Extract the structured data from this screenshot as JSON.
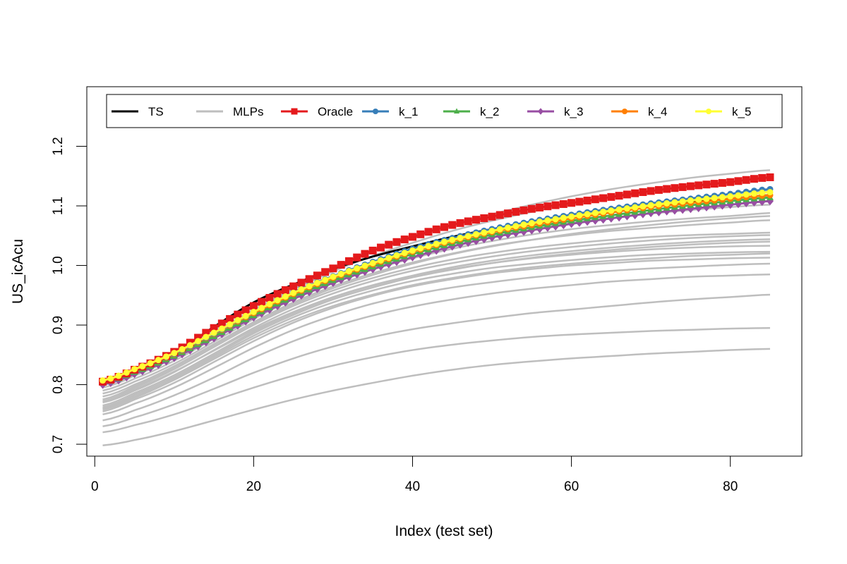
{
  "chart_data": {
    "type": "line",
    "title": "",
    "xlabel": "Index (test set)",
    "ylabel": "US_icAcu",
    "xlim": [
      -1,
      89
    ],
    "ylim": [
      0.68,
      1.3
    ],
    "xticks": [
      0,
      20,
      40,
      60,
      80
    ],
    "xtick_labels": [
      "0",
      "20",
      "40",
      "60",
      "80"
    ],
    "yticks": [
      0.7,
      0.8,
      0.9,
      1.0,
      1.1,
      1.2
    ],
    "ytick_labels": [
      "0.7",
      "0.8",
      "0.9",
      "1.0",
      "1.1",
      "1.2"
    ],
    "grid": false,
    "legend_position": "top",
    "legend": [
      {
        "label": "TS",
        "color": "#000000",
        "marker": "none"
      },
      {
        "label": "MLPs",
        "color": "#bebebe",
        "marker": "none"
      },
      {
        "label": "Oracle",
        "color": "#e41a1c",
        "marker": "square"
      },
      {
        "label": "k_1",
        "color": "#377eb8",
        "marker": "circle"
      },
      {
        "label": "k_2",
        "color": "#4daf4a",
        "marker": "triangle"
      },
      {
        "label": "k_3",
        "color": "#984ea3",
        "marker": "diamond"
      },
      {
        "label": "k_4",
        "color": "#ff7f00",
        "marker": "circle"
      },
      {
        "label": "k_5",
        "color": "#ffff33",
        "marker": "circle"
      }
    ],
    "n_points": 85,
    "x": [
      1,
      5,
      10,
      15,
      20,
      25,
      30,
      35,
      40,
      45,
      50,
      55,
      60,
      65,
      70,
      75,
      80,
      85
    ],
    "series": [
      {
        "name": "TS",
        "color": "#000000",
        "marker": "none",
        "values": [
          0.805,
          0.825,
          0.853,
          0.897,
          0.938,
          0.968,
          0.994,
          1.015,
          1.032,
          1.048,
          1.061,
          1.072,
          1.082,
          1.091,
          1.099,
          1.106,
          1.112,
          1.118
        ]
      },
      {
        "name": "Oracle",
        "color": "#e41a1c",
        "marker": "square",
        "values": [
          0.805,
          0.825,
          0.855,
          0.895,
          0.932,
          0.965,
          0.995,
          1.025,
          1.048,
          1.068,
          1.082,
          1.095,
          1.105,
          1.115,
          1.125,
          1.133,
          1.14,
          1.148
        ]
      },
      {
        "name": "k_1",
        "color": "#377eb8",
        "marker": "circle",
        "values": [
          0.805,
          0.824,
          0.852,
          0.886,
          0.922,
          0.955,
          0.982,
          1.006,
          1.028,
          1.046,
          1.061,
          1.074,
          1.085,
          1.095,
          1.104,
          1.112,
          1.12,
          1.128
        ]
      },
      {
        "name": "k_2",
        "color": "#4daf4a",
        "marker": "triangle",
        "values": [
          0.803,
          0.821,
          0.848,
          0.881,
          0.916,
          0.948,
          0.975,
          0.998,
          1.019,
          1.037,
          1.052,
          1.064,
          1.075,
          1.084,
          1.093,
          1.101,
          1.108,
          1.114
        ]
      },
      {
        "name": "k_3",
        "color": "#984ea3",
        "marker": "diamond",
        "values": [
          0.8,
          0.818,
          0.845,
          0.878,
          0.913,
          0.944,
          0.971,
          0.994,
          1.014,
          1.032,
          1.047,
          1.059,
          1.07,
          1.079,
          1.088,
          1.095,
          1.102,
          1.108
        ]
      },
      {
        "name": "k_4",
        "color": "#ff7f00",
        "marker": "circle",
        "values": [
          0.805,
          0.824,
          0.851,
          0.885,
          0.92,
          0.952,
          0.979,
          1.002,
          1.023,
          1.041,
          1.056,
          1.068,
          1.079,
          1.089,
          1.098,
          1.105,
          1.112,
          1.118
        ]
      },
      {
        "name": "k_5",
        "color": "#ffff33",
        "marker": "circle",
        "values": [
          0.807,
          0.826,
          0.853,
          0.887,
          0.922,
          0.954,
          0.981,
          1.004,
          1.025,
          1.043,
          1.058,
          1.071,
          1.082,
          1.092,
          1.101,
          1.109,
          1.116,
          1.123
        ]
      }
    ],
    "mlp_series": [
      {
        "values": [
          0.698,
          0.707,
          0.722,
          0.74,
          0.758,
          0.775,
          0.79,
          0.803,
          0.815,
          0.825,
          0.833,
          0.839,
          0.844,
          0.848,
          0.852,
          0.855,
          0.858,
          0.86
        ]
      },
      {
        "values": [
          0.72,
          0.732,
          0.75,
          0.773,
          0.795,
          0.815,
          0.832,
          0.846,
          0.858,
          0.867,
          0.874,
          0.88,
          0.884,
          0.887,
          0.89,
          0.892,
          0.894,
          0.895
        ]
      },
      {
        "values": [
          0.73,
          0.745,
          0.767,
          0.793,
          0.82,
          0.844,
          0.864,
          0.88,
          0.893,
          0.903,
          0.912,
          0.92,
          0.926,
          0.932,
          0.938,
          0.943,
          0.947,
          0.951
        ]
      },
      {
        "values": [
          0.74,
          0.757,
          0.782,
          0.812,
          0.845,
          0.873,
          0.897,
          0.916,
          0.931,
          0.943,
          0.953,
          0.961,
          0.967,
          0.973,
          0.977,
          0.981,
          0.983,
          0.985
        ]
      },
      {
        "values": [
          0.75,
          0.768,
          0.795,
          0.828,
          0.862,
          0.892,
          0.916,
          0.936,
          0.951,
          0.963,
          0.972,
          0.98,
          0.986,
          0.991,
          0.995,
          0.998,
          1.001,
          1.003
        ]
      },
      {
        "values": [
          0.755,
          0.775,
          0.803,
          0.838,
          0.873,
          0.904,
          0.929,
          0.949,
          0.965,
          0.977,
          0.987,
          0.994,
          1.0,
          1.004,
          1.008,
          1.01,
          1.012,
          1.013
        ]
      },
      {
        "values": [
          0.76,
          0.78,
          0.81,
          0.846,
          0.882,
          0.913,
          0.938,
          0.958,
          0.974,
          0.986,
          0.996,
          1.003,
          1.009,
          1.014,
          1.018,
          1.02,
          1.022,
          1.023
        ]
      },
      {
        "values": [
          0.765,
          0.786,
          0.816,
          0.852,
          0.889,
          0.92,
          0.946,
          0.966,
          0.982,
          0.994,
          1.004,
          1.012,
          1.018,
          1.023,
          1.027,
          1.03,
          1.032,
          1.033
        ]
      },
      {
        "values": [
          0.77,
          0.79,
          0.821,
          0.858,
          0.895,
          0.927,
          0.953,
          0.974,
          0.991,
          1.004,
          1.015,
          1.024,
          1.031,
          1.037,
          1.042,
          1.046,
          1.049,
          1.051
        ]
      },
      {
        "values": [
          0.775,
          0.795,
          0.826,
          0.863,
          0.9,
          0.932,
          0.958,
          0.979,
          0.996,
          1.01,
          1.021,
          1.03,
          1.037,
          1.043,
          1.048,
          1.051,
          1.053,
          1.055
        ]
      },
      {
        "values": [
          0.78,
          0.8,
          0.831,
          0.868,
          0.905,
          0.938,
          0.965,
          0.987,
          1.005,
          1.02,
          1.033,
          1.043,
          1.051,
          1.058,
          1.063,
          1.068,
          1.072,
          1.076
        ]
      },
      {
        "values": [
          0.785,
          0.805,
          0.835,
          0.872,
          0.91,
          0.943,
          0.97,
          0.993,
          1.012,
          1.028,
          1.041,
          1.052,
          1.061,
          1.068,
          1.074,
          1.079,
          1.083,
          1.088
        ]
      },
      {
        "values": [
          0.79,
          0.81,
          0.84,
          0.877,
          0.914,
          0.947,
          0.975,
          0.999,
          1.019,
          1.036,
          1.05,
          1.062,
          1.072,
          1.08,
          1.087,
          1.093,
          1.098,
          1.102
        ]
      },
      {
        "values": [
          0.795,
          0.815,
          0.845,
          0.882,
          0.919,
          0.952,
          0.981,
          1.006,
          1.027,
          1.045,
          1.061,
          1.074,
          1.086,
          1.096,
          1.105,
          1.113,
          1.12,
          1.126
        ]
      },
      {
        "values": [
          0.8,
          0.82,
          0.85,
          0.888,
          0.926,
          0.96,
          0.99,
          1.016,
          1.038,
          1.058,
          1.075,
          1.09,
          1.103,
          1.114,
          1.124,
          1.133,
          1.14,
          1.146
        ]
      },
      {
        "values": [
          0.802,
          0.823,
          0.854,
          0.892,
          0.931,
          0.966,
          0.997,
          1.024,
          1.047,
          1.068,
          1.086,
          1.102,
          1.116,
          1.128,
          1.138,
          1.147,
          1.154,
          1.16
        ]
      },
      {
        "values": [
          0.775,
          0.797,
          0.829,
          0.866,
          0.903,
          0.935,
          0.962,
          0.984,
          1.003,
          1.019,
          1.032,
          1.043,
          1.053,
          1.061,
          1.068,
          1.074,
          1.079,
          1.083
        ]
      },
      {
        "values": [
          0.772,
          0.792,
          0.822,
          0.857,
          0.892,
          0.922,
          0.947,
          0.967,
          0.983,
          0.997,
          1.008,
          1.017,
          1.024,
          1.03,
          1.035,
          1.039,
          1.042,
          1.044
        ]
      },
      {
        "values": [
          0.762,
          0.783,
          0.813,
          0.849,
          0.886,
          0.917,
          0.943,
          0.963,
          0.98,
          0.993,
          1.004,
          1.013,
          1.02,
          1.026,
          1.031,
          1.035,
          1.038,
          1.04
        ]
      },
      {
        "values": [
          0.758,
          0.778,
          0.808,
          0.843,
          0.878,
          0.908,
          0.932,
          0.951,
          0.967,
          0.979,
          0.989,
          0.997,
          1.003,
          1.008,
          1.012,
          1.016,
          1.018,
          1.02
        ]
      }
    ]
  }
}
